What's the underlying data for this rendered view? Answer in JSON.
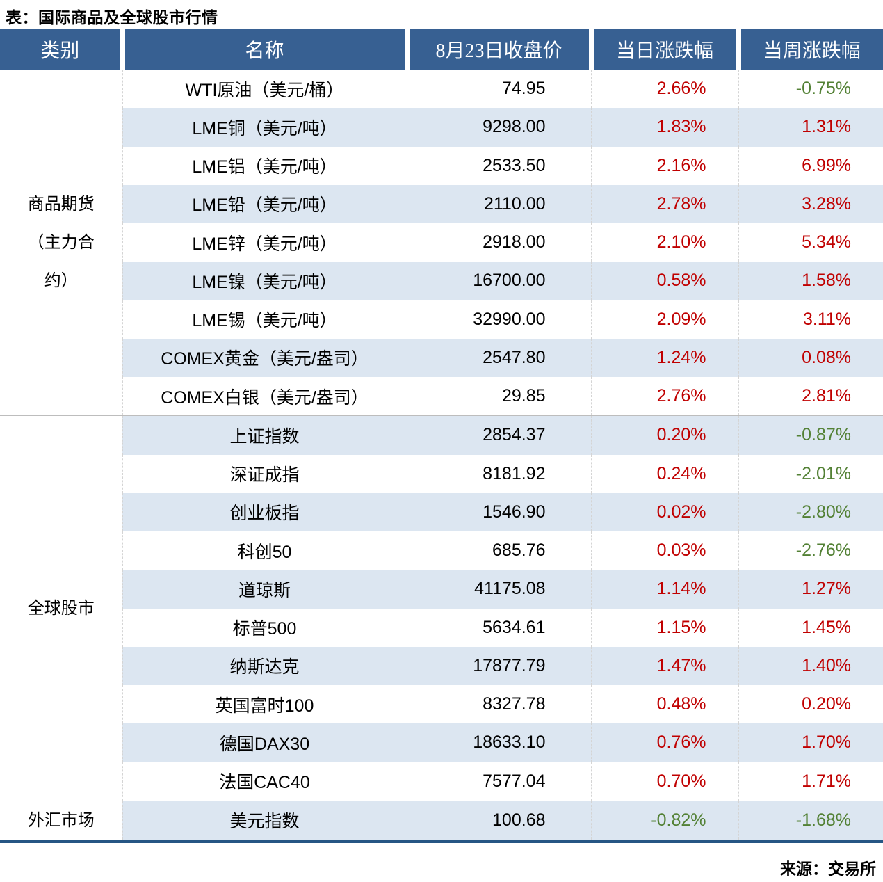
{
  "colors": {
    "header_bg": "#376092",
    "stripe": "#dce6f1",
    "up": "#c00000",
    "down": "#538135",
    "bottom_border": "#265684"
  },
  "chart_data": {
    "type": "table",
    "title": "表：国际商品及全球股市行情",
    "source": "来源：交易所",
    "columns": [
      "类别",
      "名称",
      "8月23日收盘价",
      "当日涨跌幅",
      "当周涨跌幅"
    ],
    "groups": [
      {
        "category": "商品期货（主力合约）",
        "rows": [
          [
            "WTI原油（美元/桶）",
            "74.95",
            "2.66%",
            "-0.75%"
          ],
          [
            "LME铜（美元/吨）",
            "9298.00",
            "1.83%",
            "1.31%"
          ],
          [
            "LME铝（美元/吨）",
            "2533.50",
            "2.16%",
            "6.99%"
          ],
          [
            "LME铅（美元/吨）",
            "2110.00",
            "2.78%",
            "3.28%"
          ],
          [
            "LME锌（美元/吨）",
            "2918.00",
            "2.10%",
            "5.34%"
          ],
          [
            "LME镍（美元/吨）",
            "16700.00",
            "0.58%",
            "1.58%"
          ],
          [
            "LME锡（美元/吨）",
            "32990.00",
            "2.09%",
            "3.11%"
          ],
          [
            "COMEX黄金（美元/盎司）",
            "2547.80",
            "1.24%",
            "0.08%"
          ],
          [
            "COMEX白银（美元/盎司）",
            "29.85",
            "2.76%",
            "2.81%"
          ]
        ]
      },
      {
        "category": "全球股市",
        "rows": [
          [
            "上证指数",
            "2854.37",
            "0.20%",
            "-0.87%"
          ],
          [
            "深证成指",
            "8181.92",
            "0.24%",
            "-2.01%"
          ],
          [
            "创业板指",
            "1546.90",
            "0.02%",
            "-2.80%"
          ],
          [
            "科创50",
            "685.76",
            "0.03%",
            "-2.76%"
          ],
          [
            "道琼斯",
            "41175.08",
            "1.14%",
            "1.27%"
          ],
          [
            "标普500",
            "5634.61",
            "1.15%",
            "1.45%"
          ],
          [
            "纳斯达克",
            "17877.79",
            "1.47%",
            "1.40%"
          ],
          [
            "英国富时100",
            "8327.78",
            "0.48%",
            "0.20%"
          ],
          [
            "德国DAX30",
            "18633.10",
            "0.76%",
            "1.70%"
          ],
          [
            "法国CAC40",
            "7577.04",
            "0.70%",
            "1.71%"
          ]
        ]
      },
      {
        "category": "外汇市场",
        "rows": [
          [
            "美元指数",
            "100.68",
            "-0.82%",
            "-1.68%"
          ]
        ]
      }
    ]
  }
}
